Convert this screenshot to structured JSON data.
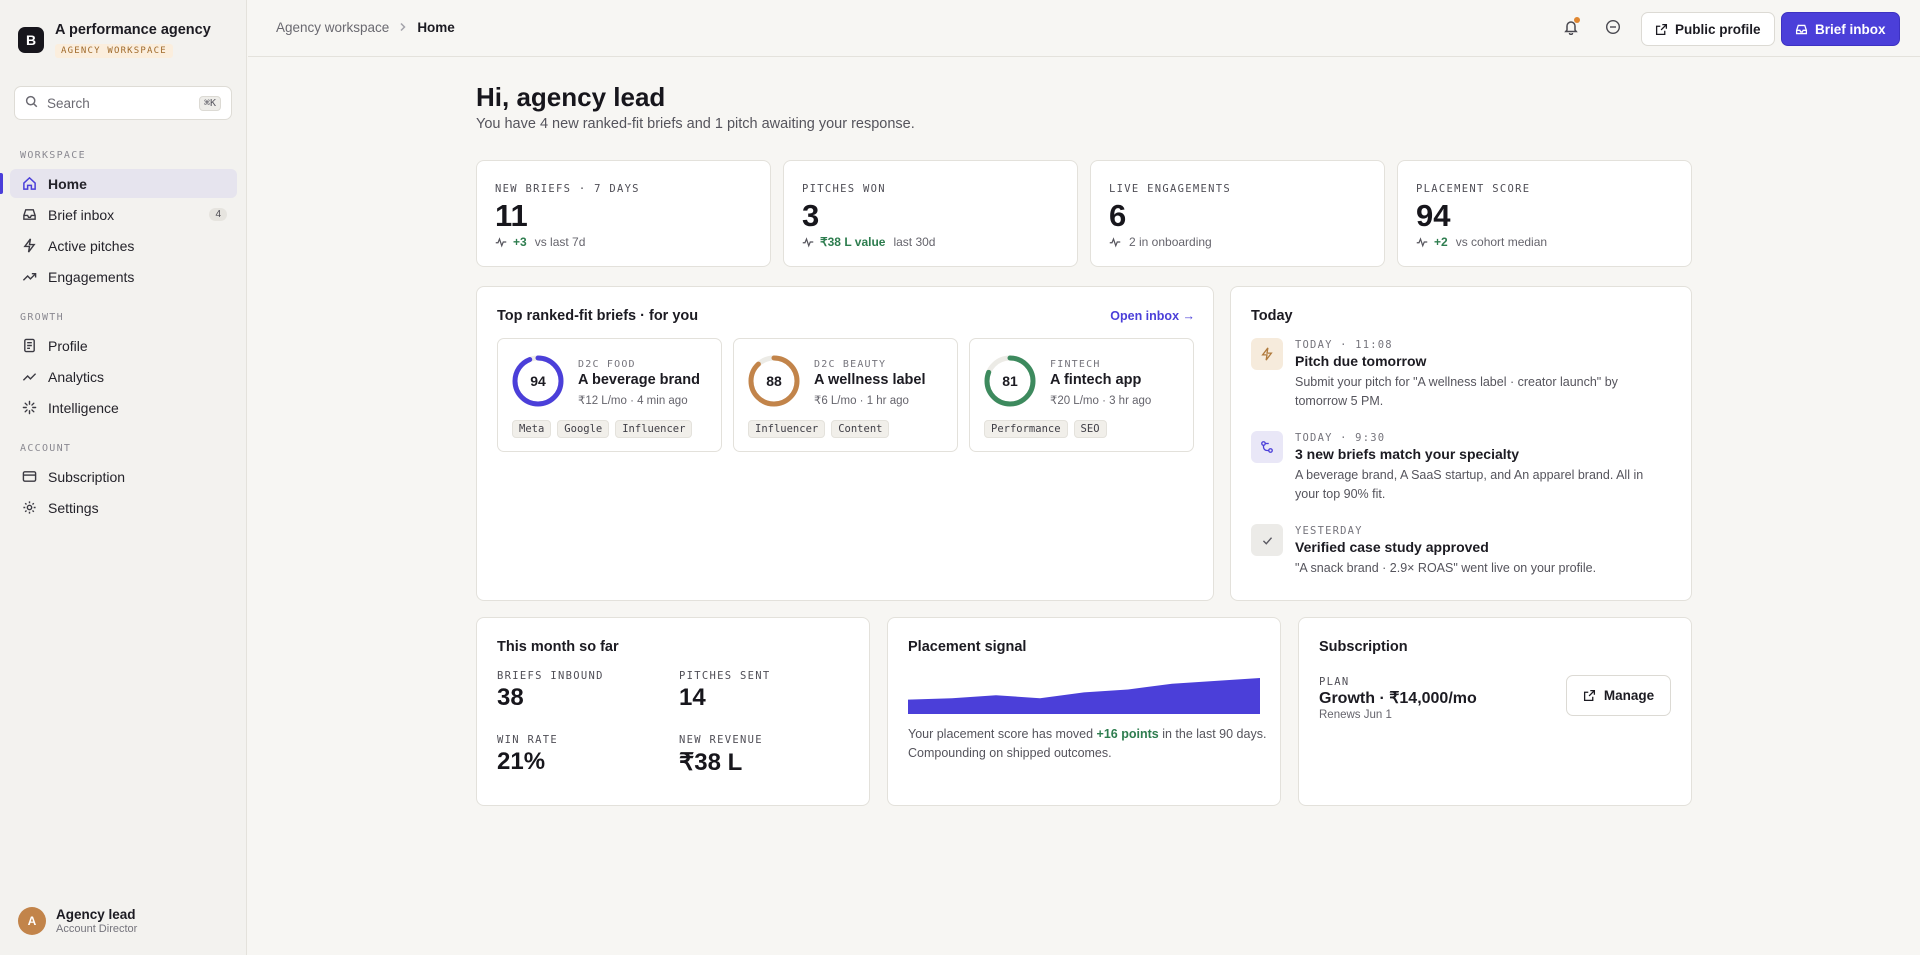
{
  "brand": {
    "logo": "B",
    "name": "A performance agency",
    "badge": "AGENCY WORKSPACE"
  },
  "search": {
    "placeholder": "Search",
    "shortcut": "⌘K"
  },
  "sidebar": {
    "sections": [
      {
        "label": "WORKSPACE",
        "items": [
          {
            "label": "Home",
            "icon": "home-icon",
            "active": true
          },
          {
            "label": "Brief inbox",
            "icon": "inbox-icon",
            "count": "4"
          },
          {
            "label": "Active pitches",
            "icon": "bolt-icon"
          },
          {
            "label": "Engagements",
            "icon": "trend-icon"
          }
        ]
      },
      {
        "label": "GROWTH",
        "items": [
          {
            "label": "Profile",
            "icon": "profile-icon"
          },
          {
            "label": "Analytics",
            "icon": "analytics-icon"
          },
          {
            "label": "Intelligence",
            "icon": "sparkle-icon"
          }
        ]
      },
      {
        "label": "ACCOUNT",
        "items": [
          {
            "label": "Subscription",
            "icon": "card-icon"
          },
          {
            "label": "Settings",
            "icon": "gear-icon"
          }
        ]
      }
    ]
  },
  "user": {
    "initial": "A",
    "name": "Agency lead",
    "role": "Account Director"
  },
  "topbar": {
    "breadcrumb": [
      "Agency workspace",
      "Home"
    ],
    "public_profile": "Public profile",
    "brief_inbox": "Brief inbox",
    "accent": "#4b3fd9",
    "notification_dot": "#e0862f"
  },
  "main": {
    "greeting": "Hi, agency lead",
    "subtitle": "You have 4 new ranked-fit briefs and 1 pitch awaiting your response."
  },
  "stats": [
    {
      "label": "NEW BRIEFS · 7 DAYS",
      "value": "11",
      "delta": "+3",
      "note": "vs last 7d"
    },
    {
      "label": "PITCHES WON",
      "value": "3",
      "delta": "₹38 L value",
      "note": "last 30d"
    },
    {
      "label": "LIVE ENGAGEMENTS",
      "value": "6",
      "delta": "",
      "note": "2 in onboarding"
    },
    {
      "label": "PLACEMENT SCORE",
      "value": "94",
      "delta": "+2",
      "note": "vs cohort median"
    }
  ],
  "briefs_panel": {
    "title": "Top ranked-fit briefs · for you",
    "link": "Open inbox →",
    "briefs": [
      {
        "score": 94,
        "category": "D2C FOOD",
        "name": "A beverage brand",
        "meta": "₹12 L/mo · 4 min ago",
        "tags": [
          "Meta",
          "Google",
          "Influencer"
        ],
        "color": "#4b3fd9"
      },
      {
        "score": 88,
        "category": "D2C BEAUTY",
        "name": "A wellness label",
        "meta": "₹6 L/mo · 1 hr ago",
        "tags": [
          "Influencer",
          "Content"
        ],
        "color": "#c2844a"
      },
      {
        "score": 81,
        "category": "FINTECH",
        "name": "A fintech app",
        "meta": "₹20 L/mo · 3 hr ago",
        "tags": [
          "Performance",
          "SEO"
        ],
        "color": "#3d8a5e"
      }
    ]
  },
  "today": {
    "title": "Today",
    "items": [
      {
        "time": "TODAY · 11:08",
        "title": "Pitch due tomorrow",
        "body": "Submit your pitch for \"A wellness label · creator launch\" by tomorrow 5 PM.",
        "icon": "bolt-icon"
      },
      {
        "time": "TODAY · 9:30",
        "title": "3 new briefs match your specialty",
        "body": "A beverage brand, A SaaS startup, and An apparel brand. All in your top 90% fit.",
        "icon": "match-icon"
      },
      {
        "time": "YESTERDAY",
        "title": "Verified case study approved",
        "body": "\"A snack brand · 2.9× ROAS\" went live on your profile.",
        "icon": "check-icon"
      }
    ]
  },
  "month": {
    "title": "This month so far",
    "metrics": [
      {
        "label": "BRIEFS INBOUND",
        "value": "38"
      },
      {
        "label": "PITCHES SENT",
        "value": "14"
      },
      {
        "label": "WIN RATE",
        "value": "21%"
      },
      {
        "label": "NEW REVENUE",
        "value": "₹38 L"
      }
    ]
  },
  "signal": {
    "title": "Placement signal",
    "text_before": "Your placement score has moved ",
    "points": "+16 points",
    "text_after": " in the last 90 days. Compounding on shipped outcomes.",
    "trend": [
      10,
      11,
      13,
      11,
      15,
      17,
      21,
      23,
      25
    ]
  },
  "subscription": {
    "title": "Subscription",
    "plan_label": "PLAN",
    "plan": "Growth · ₹14,000/mo",
    "renews": "Renews Jun 1",
    "manage": "Manage"
  }
}
